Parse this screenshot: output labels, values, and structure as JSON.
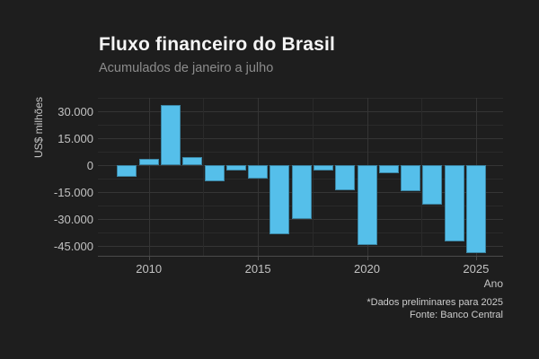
{
  "title": "Fluxo financeiro do Brasil",
  "subtitle": "Acumulados de janeiro a julho",
  "caption": {
    "line1": "*Dados preliminares para 2025",
    "line2": "Fonte: Banco Central"
  },
  "x_axis": {
    "label": "Ano",
    "ticks": [
      {
        "label": "2010",
        "value": 2010
      },
      {
        "label": "2015",
        "value": 2015
      },
      {
        "label": "2020",
        "value": 2020
      },
      {
        "label": "2025",
        "value": 2025
      }
    ]
  },
  "y_axis": {
    "label": "US$ milhões",
    "ticks": [
      {
        "label": "30.000",
        "value": 30000
      },
      {
        "label": "15.000",
        "value": 15000
      },
      {
        "label": "0",
        "value": 0
      },
      {
        "label": "-15.000",
        "value": -15000
      },
      {
        "label": "-30.000",
        "value": -30000
      },
      {
        "label": "-45.000",
        "value": -45000
      }
    ]
  },
  "chart_data": {
    "type": "bar",
    "title": "Fluxo financeiro do Brasil",
    "subtitle": "Acumulados de janeiro a julho",
    "xlabel": "Ano",
    "ylabel": "US$ milhões",
    "unit": "US$ millions",
    "categories": [
      2009,
      2010,
      2011,
      2012,
      2013,
      2014,
      2015,
      2016,
      2017,
      2018,
      2019,
      2020,
      2021,
      2022,
      2023,
      2024,
      2025
    ],
    "values": [
      -6500,
      3700,
      33700,
      4400,
      -9200,
      -2900,
      -7500,
      -38500,
      -30000,
      -2900,
      -14200,
      -44700,
      -4700,
      -14700,
      -22200,
      -42700,
      -49200
    ],
    "ylim": [
      -50500,
      37500
    ],
    "yticks_major": [
      30000,
      15000,
      0,
      -15000,
      -30000,
      -45000
    ],
    "yticks_minor": [
      37500,
      22500,
      7500,
      -7500,
      -22500,
      -37500
    ],
    "xticks_major": [
      2010,
      2015,
      2020,
      2025
    ],
    "xticks_minor": [
      2012.5,
      2017.5,
      2022.5
    ],
    "grid": true,
    "legend": false,
    "footnote": "*Dados preliminares para 2025",
    "source": "Fonte: Banco Central"
  },
  "colors": {
    "background": "#1E1E1E",
    "bar_fill": "#55BFEA",
    "title_text": "#F5F5F5",
    "subtitle_text": "#8C8C8C",
    "tick_label_text": "#C2C2C2",
    "axis_title_text": "#C6C6C6",
    "caption_text": "#CDCDCD",
    "grid_major": "#353535",
    "grid_minor": "#2A2A2A",
    "axis_line": "#4A4A4A"
  }
}
